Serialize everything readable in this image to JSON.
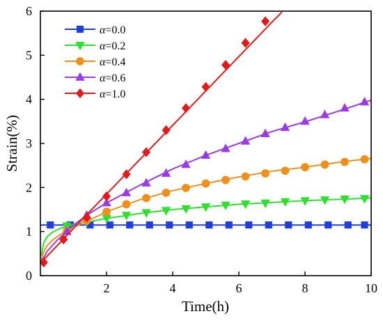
{
  "chart_data": {
    "type": "line",
    "xlabel": "Time(h)",
    "ylabel": "Strain(%)",
    "xlim": [
      0,
      10
    ],
    "ylim": [
      0,
      6
    ],
    "xticks": [
      2,
      4,
      6,
      8,
      10
    ],
    "yticks": [
      0,
      1,
      2,
      3,
      4,
      5,
      6
    ],
    "grid": false,
    "legend_position": "top-left",
    "series": [
      {
        "name": "α=0.0",
        "legend_prefix": "α",
        "legend_suffix": "=0.0",
        "color": "#1f3fd8",
        "marker": "square",
        "curve": [
          [
            0,
            1.15
          ],
          [
            10,
            1.15
          ]
        ],
        "markers": [
          [
            0.3,
            1.15
          ],
          [
            0.9,
            1.15
          ],
          [
            1.5,
            1.15
          ],
          [
            2.1,
            1.15
          ],
          [
            2.7,
            1.15
          ],
          [
            3.3,
            1.15
          ],
          [
            3.9,
            1.15
          ],
          [
            4.5,
            1.15
          ],
          [
            5.1,
            1.15
          ],
          [
            5.7,
            1.15
          ],
          [
            6.3,
            1.15
          ],
          [
            6.9,
            1.15
          ],
          [
            7.5,
            1.15
          ],
          [
            8.1,
            1.15
          ],
          [
            8.7,
            1.15
          ],
          [
            9.3,
            1.15
          ],
          [
            9.8,
            1.15
          ]
        ]
      },
      {
        "name": "α=0.2",
        "legend_prefix": "α",
        "legend_suffix": "=0.2",
        "color": "#2ee02e",
        "marker": "triangle-down",
        "curve": [
          [
            0.02,
            0.45
          ],
          [
            0.1,
            0.75
          ],
          [
            0.2,
            0.88
          ],
          [
            0.35,
            0.98
          ],
          [
            0.5,
            1.04
          ],
          [
            0.7,
            1.1
          ],
          [
            1.0,
            1.16
          ],
          [
            1.5,
            1.23
          ],
          [
            2.0,
            1.3
          ],
          [
            3.0,
            1.41
          ],
          [
            4.0,
            1.5
          ],
          [
            5.0,
            1.56
          ],
          [
            6.0,
            1.62
          ],
          [
            7.0,
            1.66
          ],
          [
            8.0,
            1.7
          ],
          [
            9.0,
            1.73
          ],
          [
            10.0,
            1.76
          ]
        ],
        "markers": [
          [
            0.8,
            1.13
          ],
          [
            1.4,
            1.22
          ],
          [
            2.0,
            1.3
          ],
          [
            2.6,
            1.37
          ],
          [
            3.2,
            1.43
          ],
          [
            3.8,
            1.48
          ],
          [
            4.4,
            1.52
          ],
          [
            5.0,
            1.56
          ],
          [
            5.6,
            1.6
          ],
          [
            6.2,
            1.63
          ],
          [
            6.8,
            1.65
          ],
          [
            7.4,
            1.68
          ],
          [
            8.0,
            1.7
          ],
          [
            8.6,
            1.72
          ],
          [
            9.2,
            1.74
          ],
          [
            9.8,
            1.75
          ]
        ]
      },
      {
        "name": "α=0.4",
        "legend_prefix": "α",
        "legend_suffix": "=0.4",
        "color": "#f0901c",
        "marker": "circle",
        "curve": [
          [
            0.02,
            0.35
          ],
          [
            0.1,
            0.55
          ],
          [
            0.2,
            0.68
          ],
          [
            0.4,
            0.83
          ],
          [
            0.7,
            0.98
          ],
          [
            1.0,
            1.1
          ],
          [
            1.5,
            1.27
          ],
          [
            2.0,
            1.45
          ],
          [
            3.0,
            1.72
          ],
          [
            4.0,
            1.93
          ],
          [
            5.0,
            2.09
          ],
          [
            6.0,
            2.24
          ],
          [
            7.0,
            2.37
          ],
          [
            8.0,
            2.46
          ],
          [
            9.0,
            2.57
          ],
          [
            10.0,
            2.66
          ]
        ],
        "markers": [
          [
            0.8,
            1.02
          ],
          [
            1.4,
            1.25
          ],
          [
            2.0,
            1.45
          ],
          [
            2.6,
            1.62
          ],
          [
            3.2,
            1.76
          ],
          [
            3.8,
            1.88
          ],
          [
            4.4,
            1.99
          ],
          [
            5.0,
            2.09
          ],
          [
            5.6,
            2.17
          ],
          [
            6.2,
            2.25
          ],
          [
            6.8,
            2.32
          ],
          [
            7.4,
            2.38
          ],
          [
            8.0,
            2.46
          ],
          [
            8.6,
            2.52
          ],
          [
            9.2,
            2.58
          ],
          [
            9.8,
            2.64
          ]
        ]
      },
      {
        "name": "α=0.6",
        "legend_prefix": "α",
        "legend_suffix": "=0.6",
        "color": "#9b3be6",
        "marker": "triangle-up",
        "curve": [
          [
            0.02,
            0.3
          ],
          [
            0.2,
            0.55
          ],
          [
            0.5,
            0.8
          ],
          [
            1.0,
            1.15
          ],
          [
            1.5,
            1.42
          ],
          [
            2.0,
            1.65
          ],
          [
            3.0,
            2.05
          ],
          [
            4.0,
            2.42
          ],
          [
            5.0,
            2.73
          ],
          [
            6.0,
            3.0
          ],
          [
            7.0,
            3.27
          ],
          [
            8.0,
            3.49
          ],
          [
            9.0,
            3.73
          ],
          [
            10.0,
            3.98
          ]
        ],
        "markers": [
          [
            0.8,
            1.0
          ],
          [
            1.4,
            1.37
          ],
          [
            2.0,
            1.65
          ],
          [
            2.6,
            1.88
          ],
          [
            3.2,
            2.1
          ],
          [
            3.8,
            2.32
          ],
          [
            4.4,
            2.52
          ],
          [
            5.0,
            2.73
          ],
          [
            5.6,
            2.88
          ],
          [
            6.2,
            3.05
          ],
          [
            6.8,
            3.22
          ],
          [
            7.4,
            3.36
          ],
          [
            8.0,
            3.5
          ],
          [
            8.6,
            3.65
          ],
          [
            9.2,
            3.8
          ],
          [
            9.8,
            3.94
          ]
        ]
      },
      {
        "name": "α=1.0",
        "legend_prefix": "α",
        "legend_suffix": "=1.0",
        "color": "#e41a1a",
        "marker": "diamond",
        "curve": [
          [
            0.02,
            0.3
          ],
          [
            1.0,
            1.07
          ],
          [
            2.0,
            1.85
          ],
          [
            3.0,
            2.63
          ],
          [
            4.0,
            3.41
          ],
          [
            5.0,
            4.19
          ],
          [
            6.0,
            4.97
          ],
          [
            7.0,
            5.75
          ],
          [
            7.3,
            5.98
          ]
        ],
        "markers": [
          [
            0.1,
            0.3
          ],
          [
            0.7,
            0.82
          ],
          [
            1.4,
            1.32
          ],
          [
            2.0,
            1.8
          ],
          [
            2.6,
            2.3
          ],
          [
            3.2,
            2.8
          ],
          [
            3.8,
            3.3
          ],
          [
            4.4,
            3.8
          ],
          [
            5.0,
            4.28
          ],
          [
            5.6,
            4.78
          ],
          [
            6.2,
            5.28
          ],
          [
            6.8,
            5.77
          ]
        ]
      }
    ]
  }
}
